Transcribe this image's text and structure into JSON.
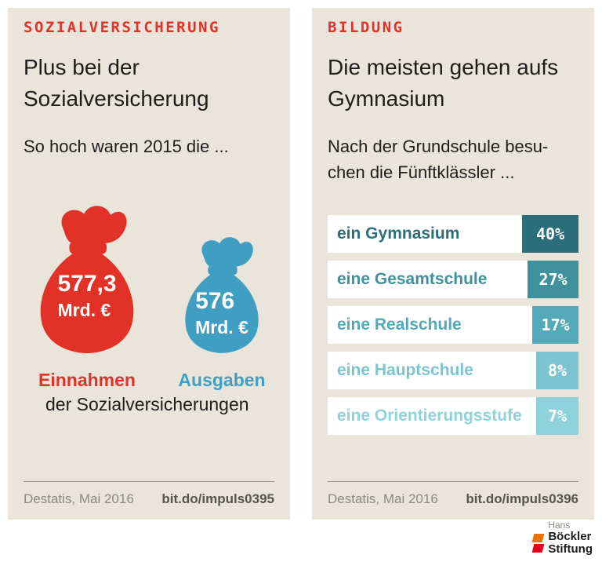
{
  "accent": {
    "red": "#e23227",
    "panel_bg": "#e9e5db"
  },
  "chart_data": [
    {
      "type": "bar",
      "variant": "pictogram-money-bags",
      "title": "Plus bei der Sozialversicherung",
      "subtitle": "So hoch waren 2015 die ...",
      "categories": [
        "Einnahmen",
        "Ausgaben"
      ],
      "values": [
        577.3,
        576
      ],
      "unit": "Mrd. €",
      "caption": "der Sozialversicherungen",
      "source": "Destatis, Mai 2016",
      "link": "bit.do/impuls0395"
    },
    {
      "type": "bar",
      "title": "Die meisten gehen aufs Gymnasium",
      "subtitle": "Nach der Grundschule besuchen die Fünftklässler ...",
      "categories": [
        "ein Gymnasium",
        "eine Gesamtschule",
        "eine Realschule",
        "eine Hauptschule",
        "eine Orientierungsstufe"
      ],
      "values": [
        40,
        27,
        17,
        8,
        7
      ],
      "unit": "%",
      "source": "Destatis, Mai 2016",
      "link": "bit.do/impuls0396"
    }
  ],
  "left_panel": {
    "kicker": "SOZIALVERSICHERUNG",
    "title": "Plus bei der Sozialversicherung",
    "subtitle": "So hoch waren 2015 die ...",
    "bags": [
      {
        "value": "577,3",
        "unit": "Mrd. €",
        "label": "Einnahmen",
        "color": "#e23227"
      },
      {
        "value": "576",
        "unit": "Mrd. €",
        "label": "Ausgaben",
        "color": "#3f9ec2"
      }
    ],
    "caption": "der Sozialversicherungen",
    "footer_source": "Destatis, Mai 2016",
    "footer_link": "bit.do/impuls0395"
  },
  "right_panel": {
    "kicker": "BILDUNG",
    "title": "Die meisten gehen aufs Gymnasium",
    "subtitle_line1": "Nach der Grundschule besu-",
    "subtitle_line2": "chen die Fünftklässler ...",
    "rows": [
      {
        "label": "ein Gymnasium",
        "pct": "40%",
        "value": 40,
        "color": "#2c6e79"
      },
      {
        "label": "eine Gesamtschule",
        "pct": "27%",
        "value": 27,
        "color": "#3f919c"
      },
      {
        "label": "eine Realschule",
        "pct": "17%",
        "value": 17,
        "color": "#54a9b8"
      },
      {
        "label": "eine Hauptschule",
        "pct": "8%",
        "value": 8,
        "color": "#7cc4d0"
      },
      {
        "label": "eine Orientierungsstufe",
        "pct": "7%",
        "value": 7,
        "color": "#8ed2dc"
      }
    ],
    "footer_source": "Destatis, Mai 2016",
    "footer_link": "bit.do/impuls0396"
  },
  "logo": {
    "line1": "Hans",
    "line2": "Böckler",
    "line3": "Stiftung",
    "mark_colors": [
      "#ee7203",
      "#e2001a"
    ]
  }
}
